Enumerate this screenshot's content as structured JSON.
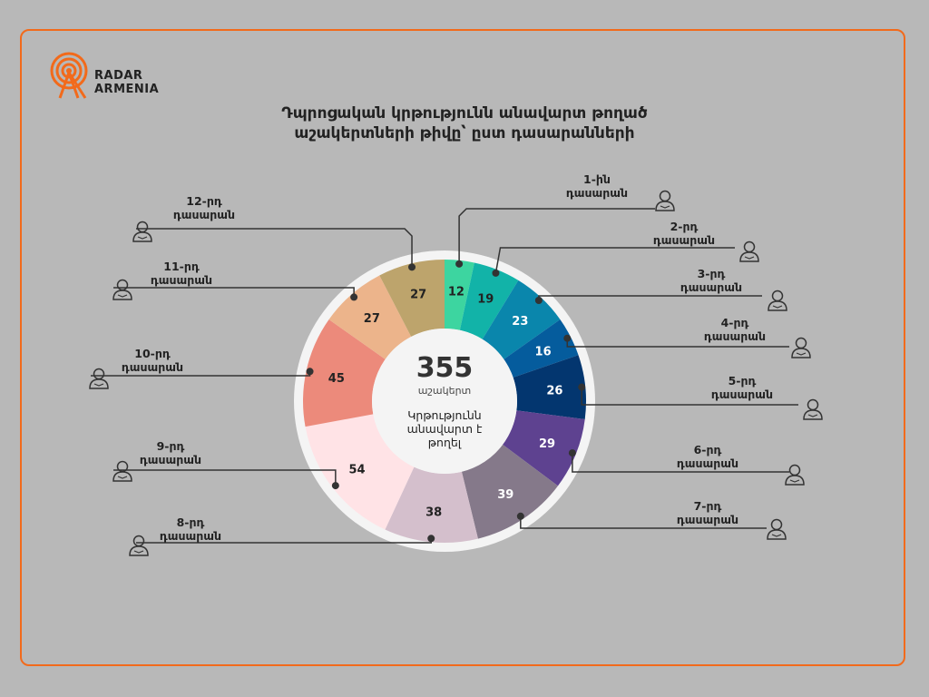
{
  "brand": {
    "line1": "RADAR",
    "line2": "ARMENIA",
    "color": "#f26a1b"
  },
  "title": {
    "line1": "Դպրոցական կրթությունն անավարտ թողած",
    "line2": "աշակերտների թիվը՝ ըստ դասարանների"
  },
  "center": {
    "total": "355",
    "unit": "աշակերտ",
    "note": "Կրթությունն անավարտ է թողել"
  },
  "chart_data": {
    "type": "pie",
    "donut": true,
    "total": 355,
    "slices": [
      {
        "label_line1": "1-ին",
        "label_line2": "դասարան",
        "value": 12,
        "color": "#3dd5a0"
      },
      {
        "label_line1": "2-րդ",
        "label_line2": "դասարան",
        "value": 19,
        "color": "#12b3a8"
      },
      {
        "label_line1": "3-րդ",
        "label_line2": "դասարան",
        "value": 23,
        "color": "#0a86ac"
      },
      {
        "label_line1": "4-րդ",
        "label_line2": "դասարան",
        "value": 16,
        "color": "#055c9d"
      },
      {
        "label_line1": "5-րդ",
        "label_line2": "դասարան",
        "value": 26,
        "color": "#03366f"
      },
      {
        "label_line1": "6-րդ",
        "label_line2": "դասարան",
        "value": 29,
        "color": "#5e4290"
      },
      {
        "label_line1": "7-րդ",
        "label_line2": "դասարան",
        "value": 39,
        "color": "#85798a"
      },
      {
        "label_line1": "8-րդ",
        "label_line2": "դասարան",
        "value": 38,
        "color": "#d4bfcc"
      },
      {
        "label_line1": "9-րդ",
        "label_line2": "դասարան",
        "value": 54,
        "color": "#ffe3e6"
      },
      {
        "label_line1": "10-րդ",
        "label_line2": "դասարան",
        "value": 45,
        "color": "#ec8a7b"
      },
      {
        "label_line1": "11-րդ",
        "label_line2": "դասարան",
        "value": 27,
        "color": "#ecb48b"
      },
      {
        "label_line1": "12-րդ",
        "label_line2": "դասարան",
        "value": 27,
        "color": "#bda46c"
      }
    ],
    "icon": "student-icon"
  }
}
